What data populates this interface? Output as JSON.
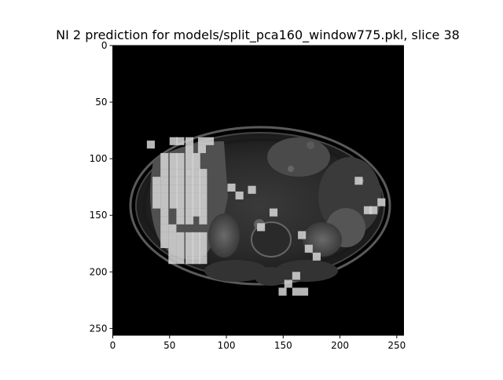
{
  "figure": {
    "title": "NI 2 prediction for models/split_pca160_window775.pkl, slice 38",
    "image_description_icon": "mri-axial-abdomen-slice",
    "overlay_color": "#d6d6d6",
    "background_color": "#000000"
  },
  "axes": {
    "x_ticks": [
      {
        "value": 0,
        "label": "0"
      },
      {
        "value": 50,
        "label": "50"
      },
      {
        "value": 100,
        "label": "100"
      },
      {
        "value": 150,
        "label": "150"
      },
      {
        "value": 200,
        "label": "200"
      },
      {
        "value": 250,
        "label": "250"
      }
    ],
    "y_ticks": [
      {
        "value": 0,
        "label": "0"
      },
      {
        "value": 50,
        "label": "50"
      },
      {
        "value": 100,
        "label": "100"
      },
      {
        "value": 150,
        "label": "150"
      },
      {
        "value": 200,
        "label": "200"
      },
      {
        "value": 250,
        "label": "250"
      }
    ],
    "x_range": [
      0,
      256
    ],
    "y_range": [
      0,
      256
    ]
  },
  "overlay_patches": [
    [
      30,
      84
    ],
    [
      50,
      81
    ],
    [
      56,
      81
    ],
    [
      64,
      81
    ],
    [
      75,
      81
    ],
    [
      82,
      81
    ],
    [
      64,
      88
    ],
    [
      75,
      88
    ],
    [
      42,
      95
    ],
    [
      50,
      95
    ],
    [
      56,
      95
    ],
    [
      64,
      95
    ],
    [
      70,
      95
    ],
    [
      42,
      102
    ],
    [
      50,
      102
    ],
    [
      56,
      102
    ],
    [
      64,
      102
    ],
    [
      70,
      102
    ],
    [
      42,
      109
    ],
    [
      50,
      109
    ],
    [
      56,
      109
    ],
    [
      64,
      109
    ],
    [
      70,
      109
    ],
    [
      76,
      109
    ],
    [
      35,
      116
    ],
    [
      42,
      116
    ],
    [
      50,
      116
    ],
    [
      56,
      116
    ],
    [
      64,
      116
    ],
    [
      70,
      116
    ],
    [
      76,
      116
    ],
    [
      35,
      123
    ],
    [
      42,
      123
    ],
    [
      50,
      123
    ],
    [
      56,
      123
    ],
    [
      64,
      123
    ],
    [
      70,
      123
    ],
    [
      76,
      123
    ],
    [
      35,
      130
    ],
    [
      42,
      130
    ],
    [
      50,
      130
    ],
    [
      56,
      130
    ],
    [
      64,
      130
    ],
    [
      70,
      130
    ],
    [
      76,
      130
    ],
    [
      35,
      137
    ],
    [
      42,
      137
    ],
    [
      50,
      137
    ],
    [
      56,
      137
    ],
    [
      64,
      137
    ],
    [
      70,
      137
    ],
    [
      76,
      137
    ],
    [
      42,
      144
    ],
    [
      56,
      144
    ],
    [
      64,
      144
    ],
    [
      70,
      144
    ],
    [
      76,
      144
    ],
    [
      42,
      151
    ],
    [
      56,
      151
    ],
    [
      64,
      151
    ],
    [
      76,
      151
    ],
    [
      42,
      158
    ],
    [
      49,
      158
    ],
    [
      42,
      165
    ],
    [
      49,
      165
    ],
    [
      56,
      165
    ],
    [
      64,
      165
    ],
    [
      70,
      165
    ],
    [
      76,
      165
    ],
    [
      42,
      172
    ],
    [
      49,
      172
    ],
    [
      56,
      172
    ],
    [
      64,
      172
    ],
    [
      70,
      172
    ],
    [
      76,
      172
    ],
    [
      49,
      179
    ],
    [
      56,
      179
    ],
    [
      64,
      179
    ],
    [
      70,
      179
    ],
    [
      76,
      179
    ],
    [
      49,
      186
    ],
    [
      56,
      186
    ],
    [
      64,
      186
    ],
    [
      70,
      186
    ],
    [
      76,
      186
    ],
    [
      101,
      122
    ],
    [
      108,
      129
    ],
    [
      119,
      124
    ],
    [
      138,
      144
    ],
    [
      127,
      157
    ],
    [
      163,
      164
    ],
    [
      169,
      176
    ],
    [
      176,
      183
    ],
    [
      213,
      116
    ],
    [
      221,
      142
    ],
    [
      226,
      142
    ],
    [
      233,
      135
    ],
    [
      158,
      200
    ],
    [
      151,
      207
    ],
    [
      146,
      214
    ],
    [
      158,
      214
    ],
    [
      165,
      214
    ]
  ]
}
